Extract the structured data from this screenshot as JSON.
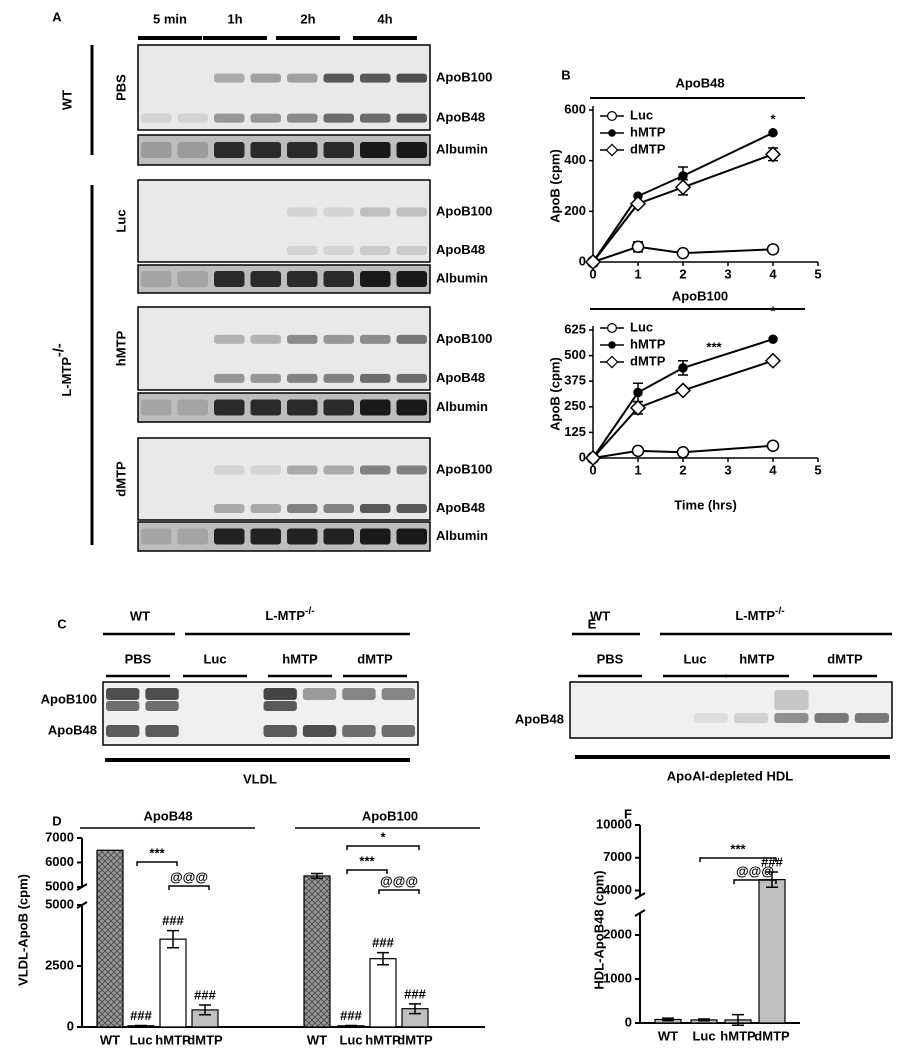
{
  "panels": {
    "a": "A",
    "b": "B",
    "c": "C",
    "d": "D",
    "e": "E",
    "f": "F"
  },
  "blot_a": {
    "times": [
      "5 min",
      "1h",
      "2h",
      "4h"
    ],
    "wt": "WT",
    "mtp": "L-MTP",
    "mtp_sup": "-/-",
    "groups": [
      {
        "name": "PBS",
        "bands": [
          "ApoB100",
          "ApoB48",
          "Albumin"
        ]
      },
      {
        "name": "Luc",
        "bands": [
          "ApoB100",
          "ApoB48",
          "Albumin"
        ]
      },
      {
        "name": "hMTP",
        "bands": [
          "ApoB100",
          "ApoB48",
          "Albumin"
        ]
      },
      {
        "name": "dMTP",
        "bands": [
          "ApoB100",
          "ApoB48",
          "Albumin"
        ]
      }
    ]
  },
  "blot_c": {
    "wt": "WT",
    "mtp": "L-MTP",
    "mtp_sup": "-/-",
    "lanes": [
      "PBS",
      "Luc",
      "hMTP",
      "dMTP"
    ],
    "bands": [
      "ApoB100",
      "ApoB48"
    ],
    "fraction": "VLDL"
  },
  "blot_e": {
    "wt": "WT",
    "mtp": "L-MTP",
    "mtp_sup": "-/-",
    "lanes": [
      "PBS",
      "Luc",
      "hMTP",
      "dMTP"
    ],
    "bands": [
      "ApoB48"
    ],
    "fraction": "ApoAI-depleted HDL"
  },
  "chart_data": [
    {
      "type": "line",
      "title": "ApoB48",
      "y_label": "ApoB (cpm)",
      "x": [
        0,
        1,
        2,
        4
      ],
      "xlim": [
        0,
        5
      ],
      "xticks": [
        0,
        1,
        2,
        3,
        4,
        5
      ],
      "ylim": [
        0,
        600
      ],
      "yticks": [
        0,
        200,
        400,
        600
      ],
      "series": [
        {
          "name": "Luc",
          "color": "#000000",
          "marker": "open-circle",
          "values": [
            0,
            60,
            35,
            50
          ],
          "errors": [
            null,
            20,
            null,
            null
          ]
        },
        {
          "name": "hMTP",
          "color": "#000000",
          "marker": "filled-circle",
          "values": [
            0,
            260,
            340,
            510
          ],
          "errors": [
            null,
            null,
            35,
            null
          ]
        },
        {
          "name": "dMTP",
          "color": "#000000",
          "marker": "open-diamond",
          "values": [
            0,
            230,
            295,
            425
          ],
          "errors": [
            null,
            null,
            30,
            25
          ]
        }
      ],
      "annotations": [
        "*"
      ]
    },
    {
      "type": "line",
      "title": "ApoB100",
      "y_label": "ApoB (cpm)",
      "x_label": "Time (hrs)",
      "x": [
        0,
        1,
        2,
        4
      ],
      "xlim": [
        0,
        5
      ],
      "xticks": [
        0,
        1,
        2,
        3,
        4,
        5
      ],
      "ylim": [
        0,
        625
      ],
      "yticks": [
        0,
        125,
        250,
        375,
        500,
        625
      ],
      "series": [
        {
          "name": "Luc",
          "color": "#000000",
          "marker": "open-circle",
          "values": [
            0,
            35,
            28,
            60
          ],
          "errors": [
            null,
            null,
            null,
            null
          ]
        },
        {
          "name": "hMTP",
          "color": "#000000",
          "marker": "filled-circle",
          "values": [
            0,
            320,
            440,
            580
          ],
          "errors": [
            null,
            45,
            35,
            null
          ]
        },
        {
          "name": "dMTP",
          "color": "#000000",
          "marker": "open-diamond",
          "values": [
            0,
            245,
            330,
            475
          ],
          "errors": [
            null,
            30,
            null,
            null
          ]
        }
      ],
      "annotations": [
        "***",
        "*"
      ]
    },
    {
      "type": "bar",
      "y_label": "VLDL-ApoB (cpm)",
      "axis_segments": [
        {
          "ylim": [
            0,
            5000
          ],
          "yticks": [
            0,
            2500,
            5000
          ]
        },
        {
          "ylim": [
            5000,
            7000
          ],
          "yticks": [
            5000,
            6000,
            7000
          ]
        }
      ],
      "colors": [
        "#9a9a9a",
        "#ffffff",
        "#ffffff",
        "#bfbfbf"
      ],
      "hatched": [
        true,
        false,
        false,
        false
      ],
      "groups": [
        {
          "title": "ApoB48",
          "categories": [
            "WT",
            "Luc",
            "hMTP",
            "dMTP"
          ],
          "values": [
            6500,
            50,
            3600,
            700
          ],
          "errors": [
            null,
            10,
            350,
            200
          ],
          "annotations": [
            "###",
            "###",
            "###",
            "***",
            "@@@"
          ]
        },
        {
          "title": "ApoB100",
          "categories": [
            "WT",
            "Luc",
            "hMTP",
            "dMTP"
          ],
          "values": [
            5450,
            50,
            2800,
            750
          ],
          "errors": [
            100,
            10,
            250,
            200
          ],
          "annotations": [
            "###",
            "###",
            "###",
            "***",
            "*",
            "@@@"
          ]
        }
      ]
    },
    {
      "type": "bar",
      "y_label": "HDL-ApoB48 (cpm)",
      "axis_segments": [
        {
          "ylim": [
            0,
            2500
          ],
          "yticks": [
            0,
            1000,
            2000
          ]
        },
        {
          "ylim": [
            3500,
            10000
          ],
          "yticks": [
            4000,
            7000,
            10000
          ]
        }
      ],
      "colors": [
        "#bfbfbf",
        "#bfbfbf",
        "#bfbfbf",
        "#bfbfbf"
      ],
      "hatched": [
        false,
        false,
        false,
        false
      ],
      "groups": [
        {
          "categories": [
            "WT",
            "Luc",
            "hMTP",
            "dMTP"
          ],
          "values": [
            80,
            70,
            70,
            5000
          ],
          "errors": [
            30,
            20,
            120,
            700
          ],
          "annotations": [
            "***",
            "@@@",
            "###"
          ]
        }
      ]
    }
  ]
}
